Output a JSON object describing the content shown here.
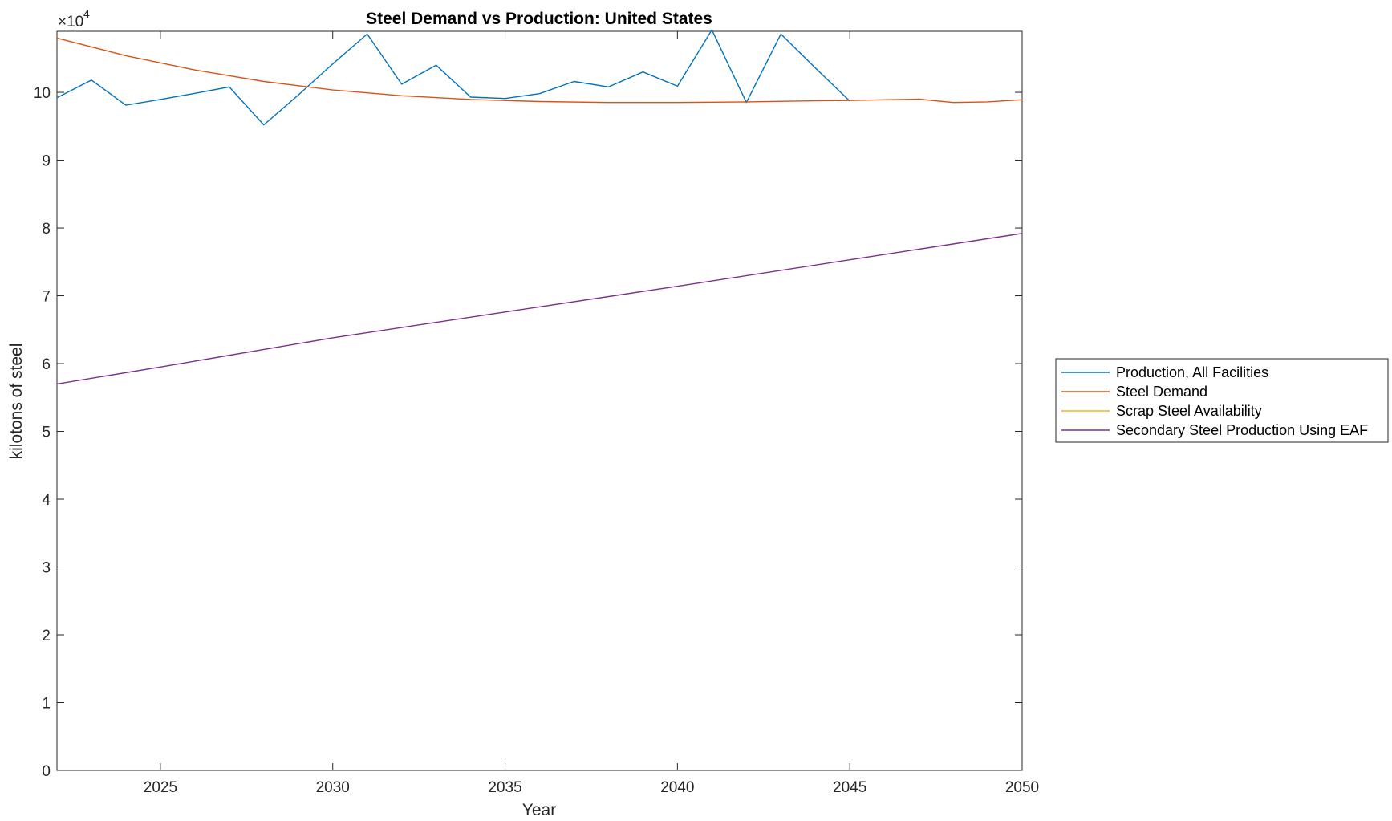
{
  "chart_data": {
    "type": "line",
    "title": "Steel Demand vs Production: United States",
    "xlabel": "Year",
    "ylabel": "kilotons of steel",
    "exponent_label": {
      "base": "×10",
      "power": "4"
    },
    "xlim": [
      2022,
      2050
    ],
    "ylim": [
      0,
      109000
    ],
    "x_ticks": [
      2025,
      2030,
      2035,
      2040,
      2045,
      2050
    ],
    "y_ticks": [
      0,
      1,
      2,
      3,
      4,
      5,
      6,
      7,
      8,
      9,
      10
    ],
    "y_tick_scale": 10000,
    "grid": false,
    "legend_position": "outside right",
    "series": [
      {
        "name": "Production, All Facilities",
        "color": "#0072BD",
        "x": [
          2022,
          2023,
          2024,
          2025,
          2026,
          2027,
          2028,
          2029,
          2030,
          2031,
          2032,
          2033,
          2034,
          2035,
          2036,
          2037,
          2038,
          2039,
          2040,
          2041,
          2042,
          2043,
          2044,
          2045
        ],
        "y": [
          99200,
          101800,
          98100,
          98950,
          99850,
          100800,
          95200,
          99600,
          104200,
          108600,
          101200,
          104000,
          99300,
          99100,
          99800,
          101600,
          100800,
          103000,
          100900,
          109200,
          98500,
          108600,
          103600,
          98700
        ]
      },
      {
        "name": "Steel Demand",
        "color": "#D95319",
        "x": [
          2022,
          2024,
          2026,
          2028,
          2030,
          2032,
          2034,
          2036,
          2038,
          2040,
          2042,
          2044,
          2045,
          2046,
          2047,
          2048,
          2049,
          2050
        ],
        "y": [
          108000,
          105400,
          103300,
          101600,
          100350,
          99500,
          98950,
          98650,
          98500,
          98500,
          98600,
          98750,
          98800,
          98900,
          99000,
          98500,
          98600,
          98900
        ]
      },
      {
        "name": "Scrap Steel Availability",
        "color": "#EDB120",
        "x": [],
        "y": []
      },
      {
        "name": "Secondary Steel Production Using EAF",
        "color": "#7E2F8E",
        "x": [
          2022,
          2025,
          2030,
          2035,
          2040,
          2045,
          2050
        ],
        "y": [
          57000,
          59500,
          63800,
          67600,
          71400,
          75300,
          79200
        ]
      }
    ]
  }
}
